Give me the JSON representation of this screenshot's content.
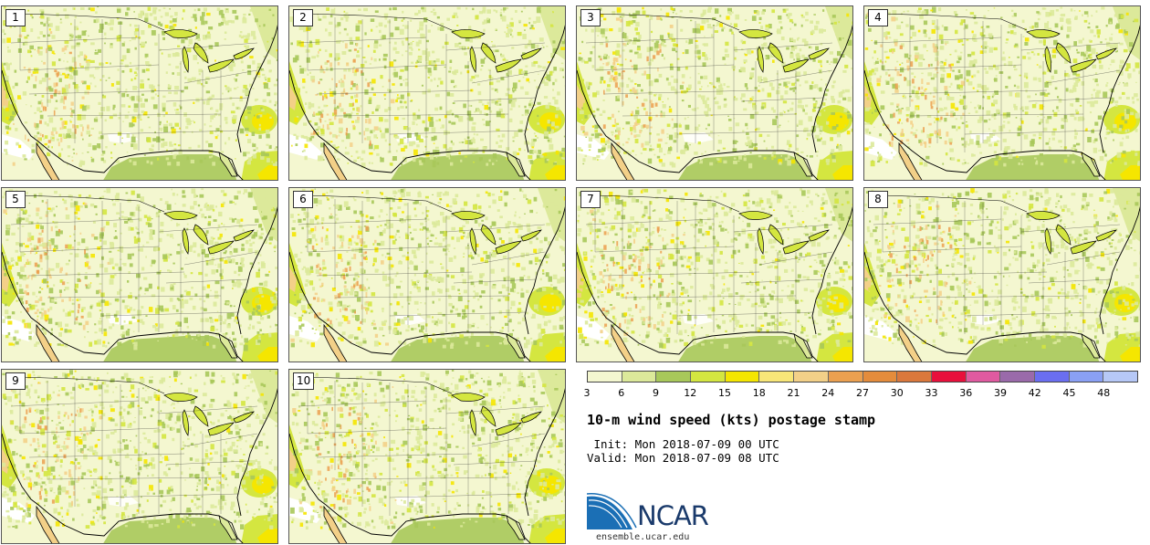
{
  "panels": [
    {
      "label": "1"
    },
    {
      "label": "2"
    },
    {
      "label": "3"
    },
    {
      "label": "4"
    },
    {
      "label": "5"
    },
    {
      "label": "6"
    },
    {
      "label": "7"
    },
    {
      "label": "8"
    },
    {
      "label": "9"
    },
    {
      "label": "10"
    }
  ],
  "colorbar": {
    "ticks": [
      "3",
      "6",
      "9",
      "12",
      "15",
      "18",
      "21",
      "24",
      "27",
      "30",
      "33",
      "36",
      "39",
      "42",
      "45",
      "48"
    ],
    "colors": [
      "#f4f7d0",
      "#dce99a",
      "#a8c85a",
      "#d4e640",
      "#f5e600",
      "#f8e678",
      "#f3d088",
      "#eba050",
      "#e48c3c",
      "#da783c",
      "#e8103c",
      "#e05aa0",
      "#9a6aaa",
      "#6a6ef0",
      "#8aa0f5",
      "#b6c8f7"
    ]
  },
  "title": "10-m wind speed (kts) postage stamp",
  "init": " Init: Mon 2018-07-09 00 UTC",
  "valid": "Valid: Mon 2018-07-09 08 UTC",
  "logo": {
    "text": "NCAR",
    "url": "ensemble.ucar.edu",
    "colors": {
      "blue": "#1b6fb5",
      "navy": "#1a3a6b"
    }
  }
}
